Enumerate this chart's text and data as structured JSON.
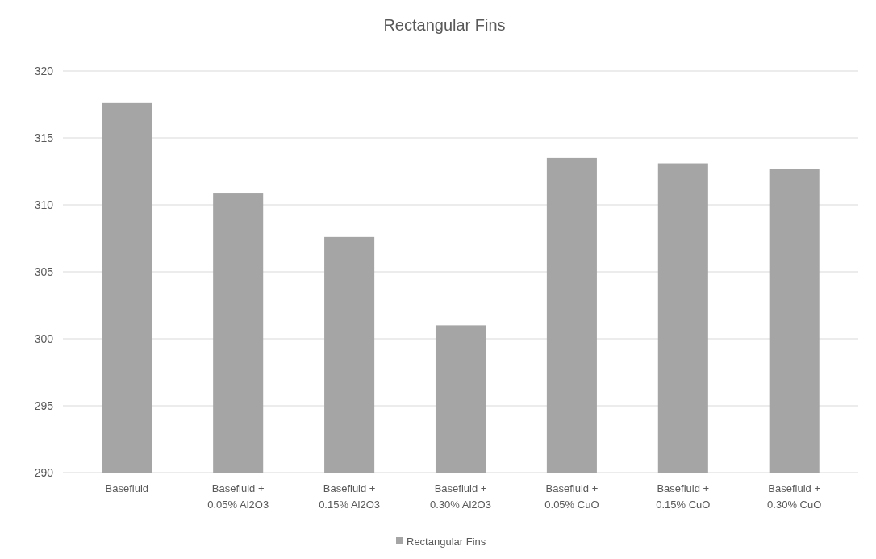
{
  "chart_data": {
    "type": "bar",
    "title": "Rectangular Fins",
    "categories": [
      "Basefluid",
      "Basefluid + 0.05% Al2O3",
      "Basefluid + 0.15% Al2O3",
      "Basefluid + 0.30% Al2O3",
      "Basefluid + 0.05% CuO",
      "Basefluid + 0.15% CuO",
      "Basefluid + 0.30% CuO"
    ],
    "series": [
      {
        "name": "Rectangular Fins",
        "color": "#a5a5a5",
        "values": [
          317.6,
          310.9,
          307.6,
          301.0,
          313.5,
          313.1,
          312.7
        ]
      }
    ],
    "ylim": [
      290,
      320
    ],
    "yticks": [
      290,
      295,
      300,
      305,
      310,
      315,
      320
    ],
    "grid": "y",
    "legend": "bottom"
  }
}
